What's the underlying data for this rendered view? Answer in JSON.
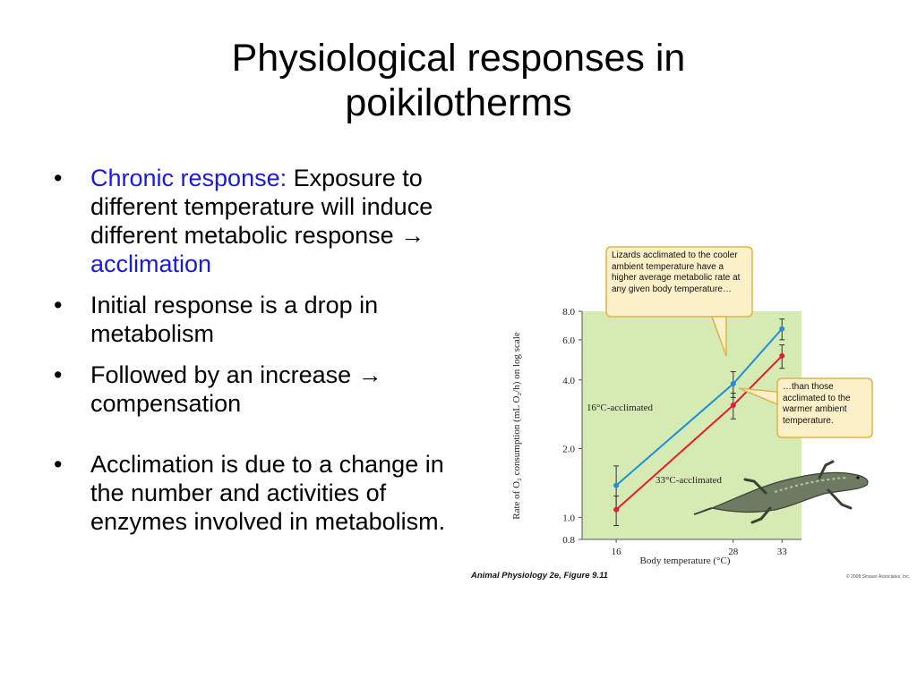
{
  "slide": {
    "title_line1": "Physiological responses in",
    "title_line2": "poikilotherms"
  },
  "bullets": [
    {
      "lead": "Chronic response:",
      "text": "Exposure to different temperature will induce different metabolic response",
      "arrow": "→",
      "tail": "acclimation"
    },
    {
      "text": "Initial response is a drop in metabolism"
    },
    {
      "text": "Followed by an increase",
      "arrow": "→",
      "tail": "compensation"
    },
    {
      "text": "Acclimation is due to a change in the number and activities of enzymes involved in metabolism."
    }
  ],
  "colors": {
    "accent_blue": "#1a1adc",
    "plot_bg": "#d6ebb4",
    "series_16": "#1e8fd8",
    "series_33": "#e0202e",
    "callout_bg": "#fbf0c8",
    "callout_border": "#e0b24a"
  },
  "chart_data": {
    "type": "line",
    "xlabel": "Body temperature (°C)",
    "ylabel": "Rate of O₂ consumption (mL O₂/h) on log scale",
    "x_ticks": [
      16,
      28,
      33
    ],
    "y_ticks": [
      0.8,
      1.0,
      2.0,
      4.0,
      6.0,
      8.0
    ],
    "y_tick_labels": [
      "0.8",
      "1.0",
      "2.0",
      "4.0",
      "6.0",
      "8.0"
    ],
    "y_scale": "log",
    "xlim": [
      12.5,
      35
    ],
    "ylim": [
      0.8,
      8.0
    ],
    "series": [
      {
        "name": "16°C-acclimated",
        "x": [
          16,
          28,
          33
        ],
        "y": [
          1.38,
          3.85,
          6.7
        ],
        "err": [
          0.3,
          0.5,
          0.7
        ]
      },
      {
        "name": "33°C-acclimated",
        "x": [
          16,
          28,
          33
        ],
        "y": [
          1.08,
          3.1,
          5.1
        ],
        "err": [
          0.16,
          0.4,
          0.6
        ]
      }
    ],
    "annotations": [
      "Lizards acclimated to the cooler ambient temperature have a higher average metabolic rate at any given body temperature…",
      "…than those acclimated to the warmer ambient temperature."
    ],
    "caption": "Animal Physiology 2e, Figure 9.11",
    "copyright": "© 2008 Sinauer Associates, Inc."
  }
}
